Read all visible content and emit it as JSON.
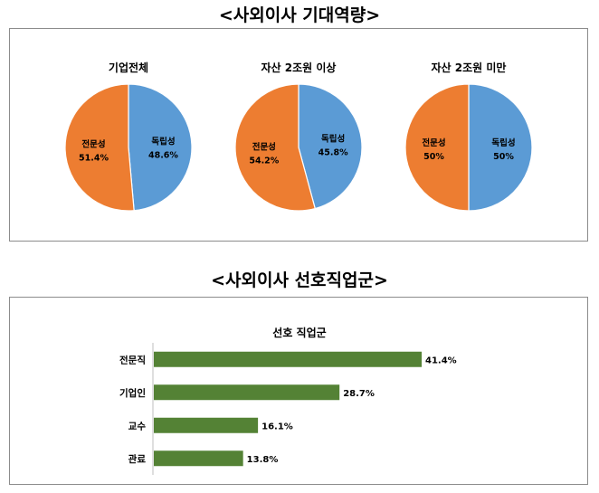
{
  "titles": {
    "expected_competency": "<사외이사 기대역량>",
    "preferred_occupation": "<사외이사 선호직업군>"
  },
  "chart_data": [
    {
      "type": "pie",
      "title": "기업전체",
      "slices": [
        {
          "label": "독립성",
          "value": 48.6,
          "display": "48.6%",
          "color": "#5b9bd5"
        },
        {
          "label": "전문성",
          "value": 51.4,
          "display": "51.4%",
          "color": "#ed7d31"
        }
      ]
    },
    {
      "type": "pie",
      "title": "자산 2조원 이상",
      "slices": [
        {
          "label": "독립성",
          "value": 45.8,
          "display": "45.8%",
          "color": "#5b9bd5"
        },
        {
          "label": "전문성",
          "value": 54.2,
          "display": "54.2%",
          "color": "#ed7d31"
        }
      ]
    },
    {
      "type": "pie",
      "title": "자산 2조원 미만",
      "slices": [
        {
          "label": "독립성",
          "value": 50,
          "display": "50%",
          "color": "#5b9bd5"
        },
        {
          "label": "전문성",
          "value": 50,
          "display": "50%",
          "color": "#ed7d31"
        }
      ]
    },
    {
      "type": "bar",
      "orientation": "horizontal",
      "title": "선호 직업군",
      "categories": [
        "전문직",
        "기업인",
        "교수",
        "관료"
      ],
      "values": [
        41.4,
        28.7,
        16.1,
        13.8
      ],
      "value_labels": [
        "41.4%",
        "28.7%",
        "16.1%",
        "13.8%"
      ],
      "color": "#548235",
      "xlim": [
        0,
        45
      ]
    }
  ]
}
